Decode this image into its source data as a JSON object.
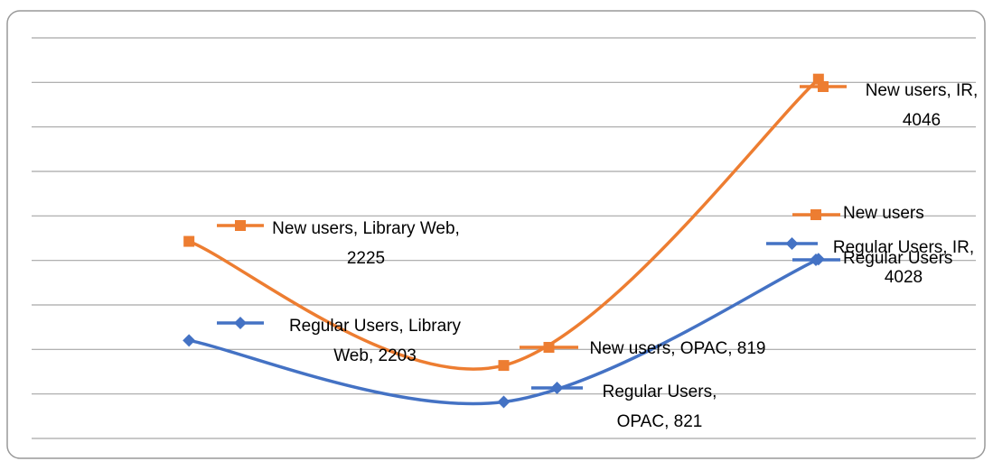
{
  "chart_data": {
    "type": "line",
    "stacked": true,
    "smooth": true,
    "categories": [
      "Library Web",
      "OPAC",
      "IR"
    ],
    "series": [
      {
        "name": "Regular Users",
        "color": "#4472c4",
        "marker": "diamond",
        "values": [
          2203,
          821,
          4028
        ],
        "value_labels": [
          "Regular Users, Library Web, 2203",
          "Regular Users, OPAC, 821",
          "Regular Users, IR, 4028"
        ]
      },
      {
        "name": "New users",
        "color": "#ed7d31",
        "marker": "square",
        "values": [
          2225,
          819,
          4046
        ],
        "value_labels": [
          "New users, Library Web, 2225",
          "New users, OPAC, 819",
          "New users, IR, 4046"
        ]
      }
    ],
    "ylim": [
      0,
      9000
    ],
    "yticks": [
      0,
      1000,
      2000,
      3000,
      4000,
      5000,
      6000,
      7000,
      8000,
      9000
    ],
    "grid": true,
    "legend": "right"
  }
}
